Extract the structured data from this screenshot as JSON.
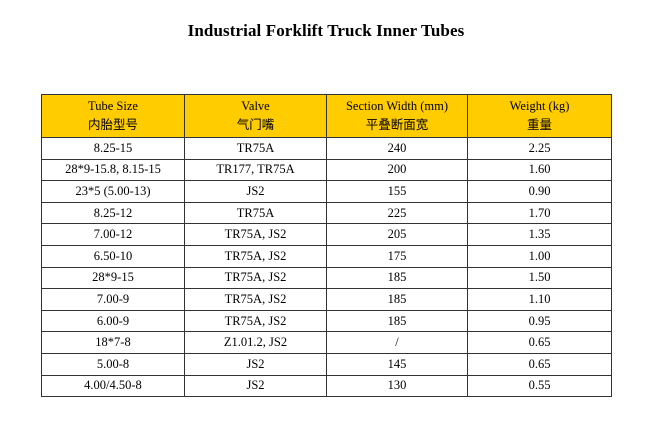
{
  "title": "Industrial Forklift Truck Inner Tubes",
  "columns": [
    {
      "en": "Tube Size",
      "zh": "内胎型号"
    },
    {
      "en": "Valve",
      "zh": "气门嘴"
    },
    {
      "en": "Section Width (mm)",
      "zh": "平叠断面宽"
    },
    {
      "en": "Weight (kg)",
      "zh": "重量"
    }
  ],
  "rows": [
    [
      "8.25-15",
      "TR75A",
      "240",
      "2.25"
    ],
    [
      "28*9-15.8, 8.15-15",
      "TR177, TR75A",
      "200",
      "1.60"
    ],
    [
      "23*5 (5.00-13)",
      "JS2",
      "155",
      "0.90"
    ],
    [
      "8.25-12",
      "TR75A",
      "225",
      "1.70"
    ],
    [
      "7.00-12",
      "TR75A, JS2",
      "205",
      "1.35"
    ],
    [
      "6.50-10",
      "TR75A, JS2",
      "175",
      "1.00"
    ],
    [
      "28*9-15",
      "TR75A, JS2",
      "185",
      "1.50"
    ],
    [
      "7.00-9",
      "TR75A, JS2",
      "185",
      "1.10"
    ],
    [
      "6.00-9",
      "TR75A, JS2",
      "185",
      "0.95"
    ],
    [
      "18*7-8",
      "Z1.01.2, JS2",
      "/",
      "0.65"
    ],
    [
      "5.00-8",
      "JS2",
      "145",
      "0.65"
    ],
    [
      "4.00/4.50-8",
      "JS2",
      "130",
      "0.55"
    ]
  ],
  "colors": {
    "header_background": "#ffcc00",
    "border": "#333333"
  }
}
